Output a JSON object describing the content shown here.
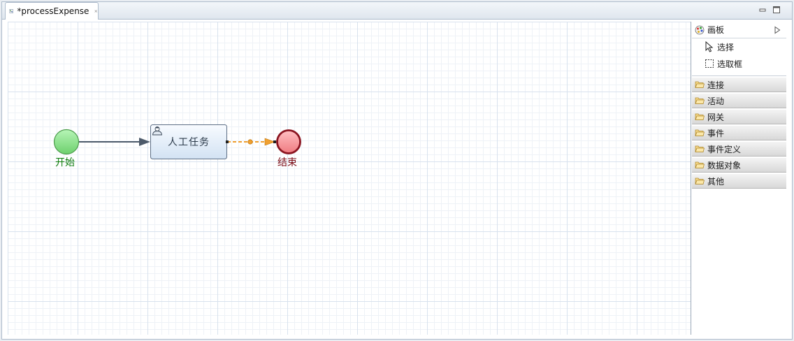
{
  "tab": {
    "title": "*processExpense",
    "icon": "process-file-icon",
    "close_icon": "close-icon"
  },
  "window_controls": {
    "minimize_icon": "minimize-icon",
    "maximize_icon": "maximize-icon"
  },
  "diagram": {
    "start_event": {
      "label": "开始",
      "color": "#7cd67c"
    },
    "user_task": {
      "label": "人工任务",
      "icon": "user-icon"
    },
    "end_event": {
      "label": "结束",
      "color": "#f07f85"
    },
    "flow_selected_color": "#f0a030"
  },
  "palette": {
    "title": "画板",
    "tools": [
      {
        "label": "选择",
        "icon": "pointer-icon"
      },
      {
        "label": "选取框",
        "icon": "marquee-icon"
      }
    ],
    "drawers": [
      {
        "label": "连接"
      },
      {
        "label": "活动"
      },
      {
        "label": "网关"
      },
      {
        "label": "事件"
      },
      {
        "label": "事件定义"
      },
      {
        "label": "数据对象"
      },
      {
        "label": "其他"
      }
    ]
  }
}
